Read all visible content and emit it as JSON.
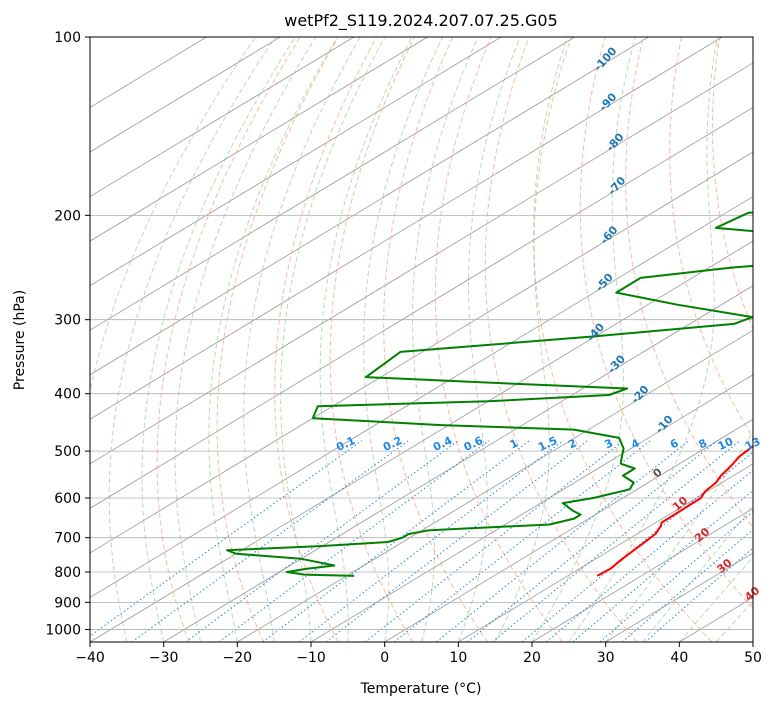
{
  "chart_data": {
    "type": "line",
    "title": "wetPf2_S119.2024.207.07.25.G05",
    "xlabel": "Temperature (°C)",
    "ylabel": "Pressure (hPa)",
    "xlim": [
      -40,
      50
    ],
    "ylim": [
      1050,
      100
    ],
    "y_scale": "log",
    "x_ticks": [
      -40,
      -30,
      -20,
      -10,
      0,
      10,
      20,
      30,
      40,
      50
    ],
    "y_ticks": [
      100,
      200,
      300,
      400,
      500,
      600,
      700,
      800,
      900,
      1000
    ],
    "skew_ratio_deg_per_decade": 133,
    "grid": true,
    "colors": {
      "temperature": "#ff0000",
      "dewpoint": "#008000",
      "isotherm": "#999999",
      "dry_adiabat": "#ffa07a",
      "moist_adiabat": "#8fbc8f",
      "mixing_ratio": "#1e88e5",
      "dry_label": "#1f77b4",
      "moist_label": "#d62728"
    },
    "series": [
      {
        "role": "temperature",
        "color": "#ff0000",
        "points": [
          [
            14,
            812
          ],
          [
            14.2,
            790
          ],
          [
            13.6,
            760
          ],
          [
            13,
            720
          ],
          [
            12.5,
            690
          ],
          [
            11.5,
            670
          ],
          [
            10.8,
            660
          ],
          [
            10.7,
            625
          ],
          [
            10.6,
            600
          ],
          [
            9.7,
            585
          ],
          [
            9.2,
            565
          ],
          [
            8.3,
            550
          ],
          [
            7.5,
            530
          ],
          [
            6.5,
            510
          ],
          [
            6.0,
            490
          ],
          [
            5.8,
            470
          ],
          [
            6.3,
            450
          ],
          [
            6.8,
            430
          ],
          [
            6.9,
            410
          ],
          [
            7.3,
            392
          ],
          [
            8.3,
            378
          ],
          [
            10.5,
            365
          ],
          [
            12.5,
            352
          ],
          [
            13.8,
            338
          ],
          [
            14.3,
            320
          ],
          [
            14.2,
            300
          ],
          [
            14.3,
            280
          ],
          [
            13.8,
            265
          ],
          [
            12.3,
            250
          ],
          [
            10.2,
            235
          ],
          [
            9.3,
            220
          ],
          [
            8.5,
            200
          ],
          [
            6.0,
            180
          ],
          [
            3.0,
            163
          ],
          [
            1.0,
            150
          ],
          [
            0,
            140
          ],
          [
            -0.5,
            128
          ],
          [
            0.5,
            120
          ],
          [
            3.0,
            113
          ],
          [
            6.0,
            106
          ],
          [
            9.0,
            100
          ]
        ]
      },
      {
        "role": "dewpoint",
        "color": "#008000",
        "points": [
          [
            -19,
            812
          ],
          [
            -26,
            808
          ],
          [
            -29,
            800
          ],
          [
            -27,
            790
          ],
          [
            -24,
            780
          ],
          [
            -30,
            760
          ],
          [
            -40,
            745
          ],
          [
            -42,
            735
          ],
          [
            -30,
            723
          ],
          [
            -22,
            712
          ],
          [
            -21,
            700
          ],
          [
            -21,
            690
          ],
          [
            -19,
            680
          ],
          [
            -4,
            665
          ],
          [
            -2,
            650
          ],
          [
            -2,
            640
          ],
          [
            -4,
            630
          ],
          [
            -7,
            612
          ],
          [
            -4,
            600
          ],
          [
            -1,
            580
          ],
          [
            -2,
            565
          ],
          [
            -5,
            550
          ],
          [
            -5,
            535
          ],
          [
            -8,
            525
          ],
          [
            -9,
            515
          ],
          [
            -10,
            505
          ],
          [
            -11,
            495
          ],
          [
            -14,
            475
          ],
          [
            -22,
            460
          ],
          [
            -41,
            452
          ],
          [
            -60,
            440
          ],
          [
            -62,
            420
          ],
          [
            -40,
            412
          ],
          [
            -25,
            402
          ],
          [
            -24,
            392
          ],
          [
            -40,
            385
          ],
          [
            -62,
            375
          ],
          [
            -63,
            340
          ],
          [
            -40,
            320
          ],
          [
            -24,
            305
          ],
          [
            -23,
            297
          ],
          [
            -36,
            283
          ],
          [
            -47,
            270
          ],
          [
            -47,
            255
          ],
          [
            -37,
            245
          ],
          [
            -23,
            236
          ],
          [
            -21,
            228
          ],
          [
            -31,
            218
          ],
          [
            -48,
            210
          ],
          [
            -47,
            198
          ],
          [
            -38,
            194
          ],
          [
            -24,
            188
          ],
          [
            -18,
            175
          ],
          [
            -16,
            162
          ],
          [
            -14,
            148
          ],
          [
            -11,
            133
          ],
          [
            -9,
            122
          ],
          [
            -6,
            113
          ],
          [
            -3,
            106
          ],
          [
            0,
            100
          ]
        ]
      }
    ],
    "dry_adiabat_labels": [
      "-100",
      "-90",
      "-80",
      "-70",
      "-60",
      "-50",
      "-40",
      "-30",
      "-20",
      "-10"
    ],
    "moist_adiabat_labels": [
      "0",
      "10",
      "20",
      "30",
      "40"
    ],
    "mixing_ratio_labels": [
      "0.1",
      "0.2",
      "0.4",
      "0.6",
      "1",
      "1.5",
      "2",
      "3",
      "4",
      "6",
      "8",
      "10",
      "13",
      "16",
      "20",
      "25",
      "30",
      "36"
    ]
  }
}
